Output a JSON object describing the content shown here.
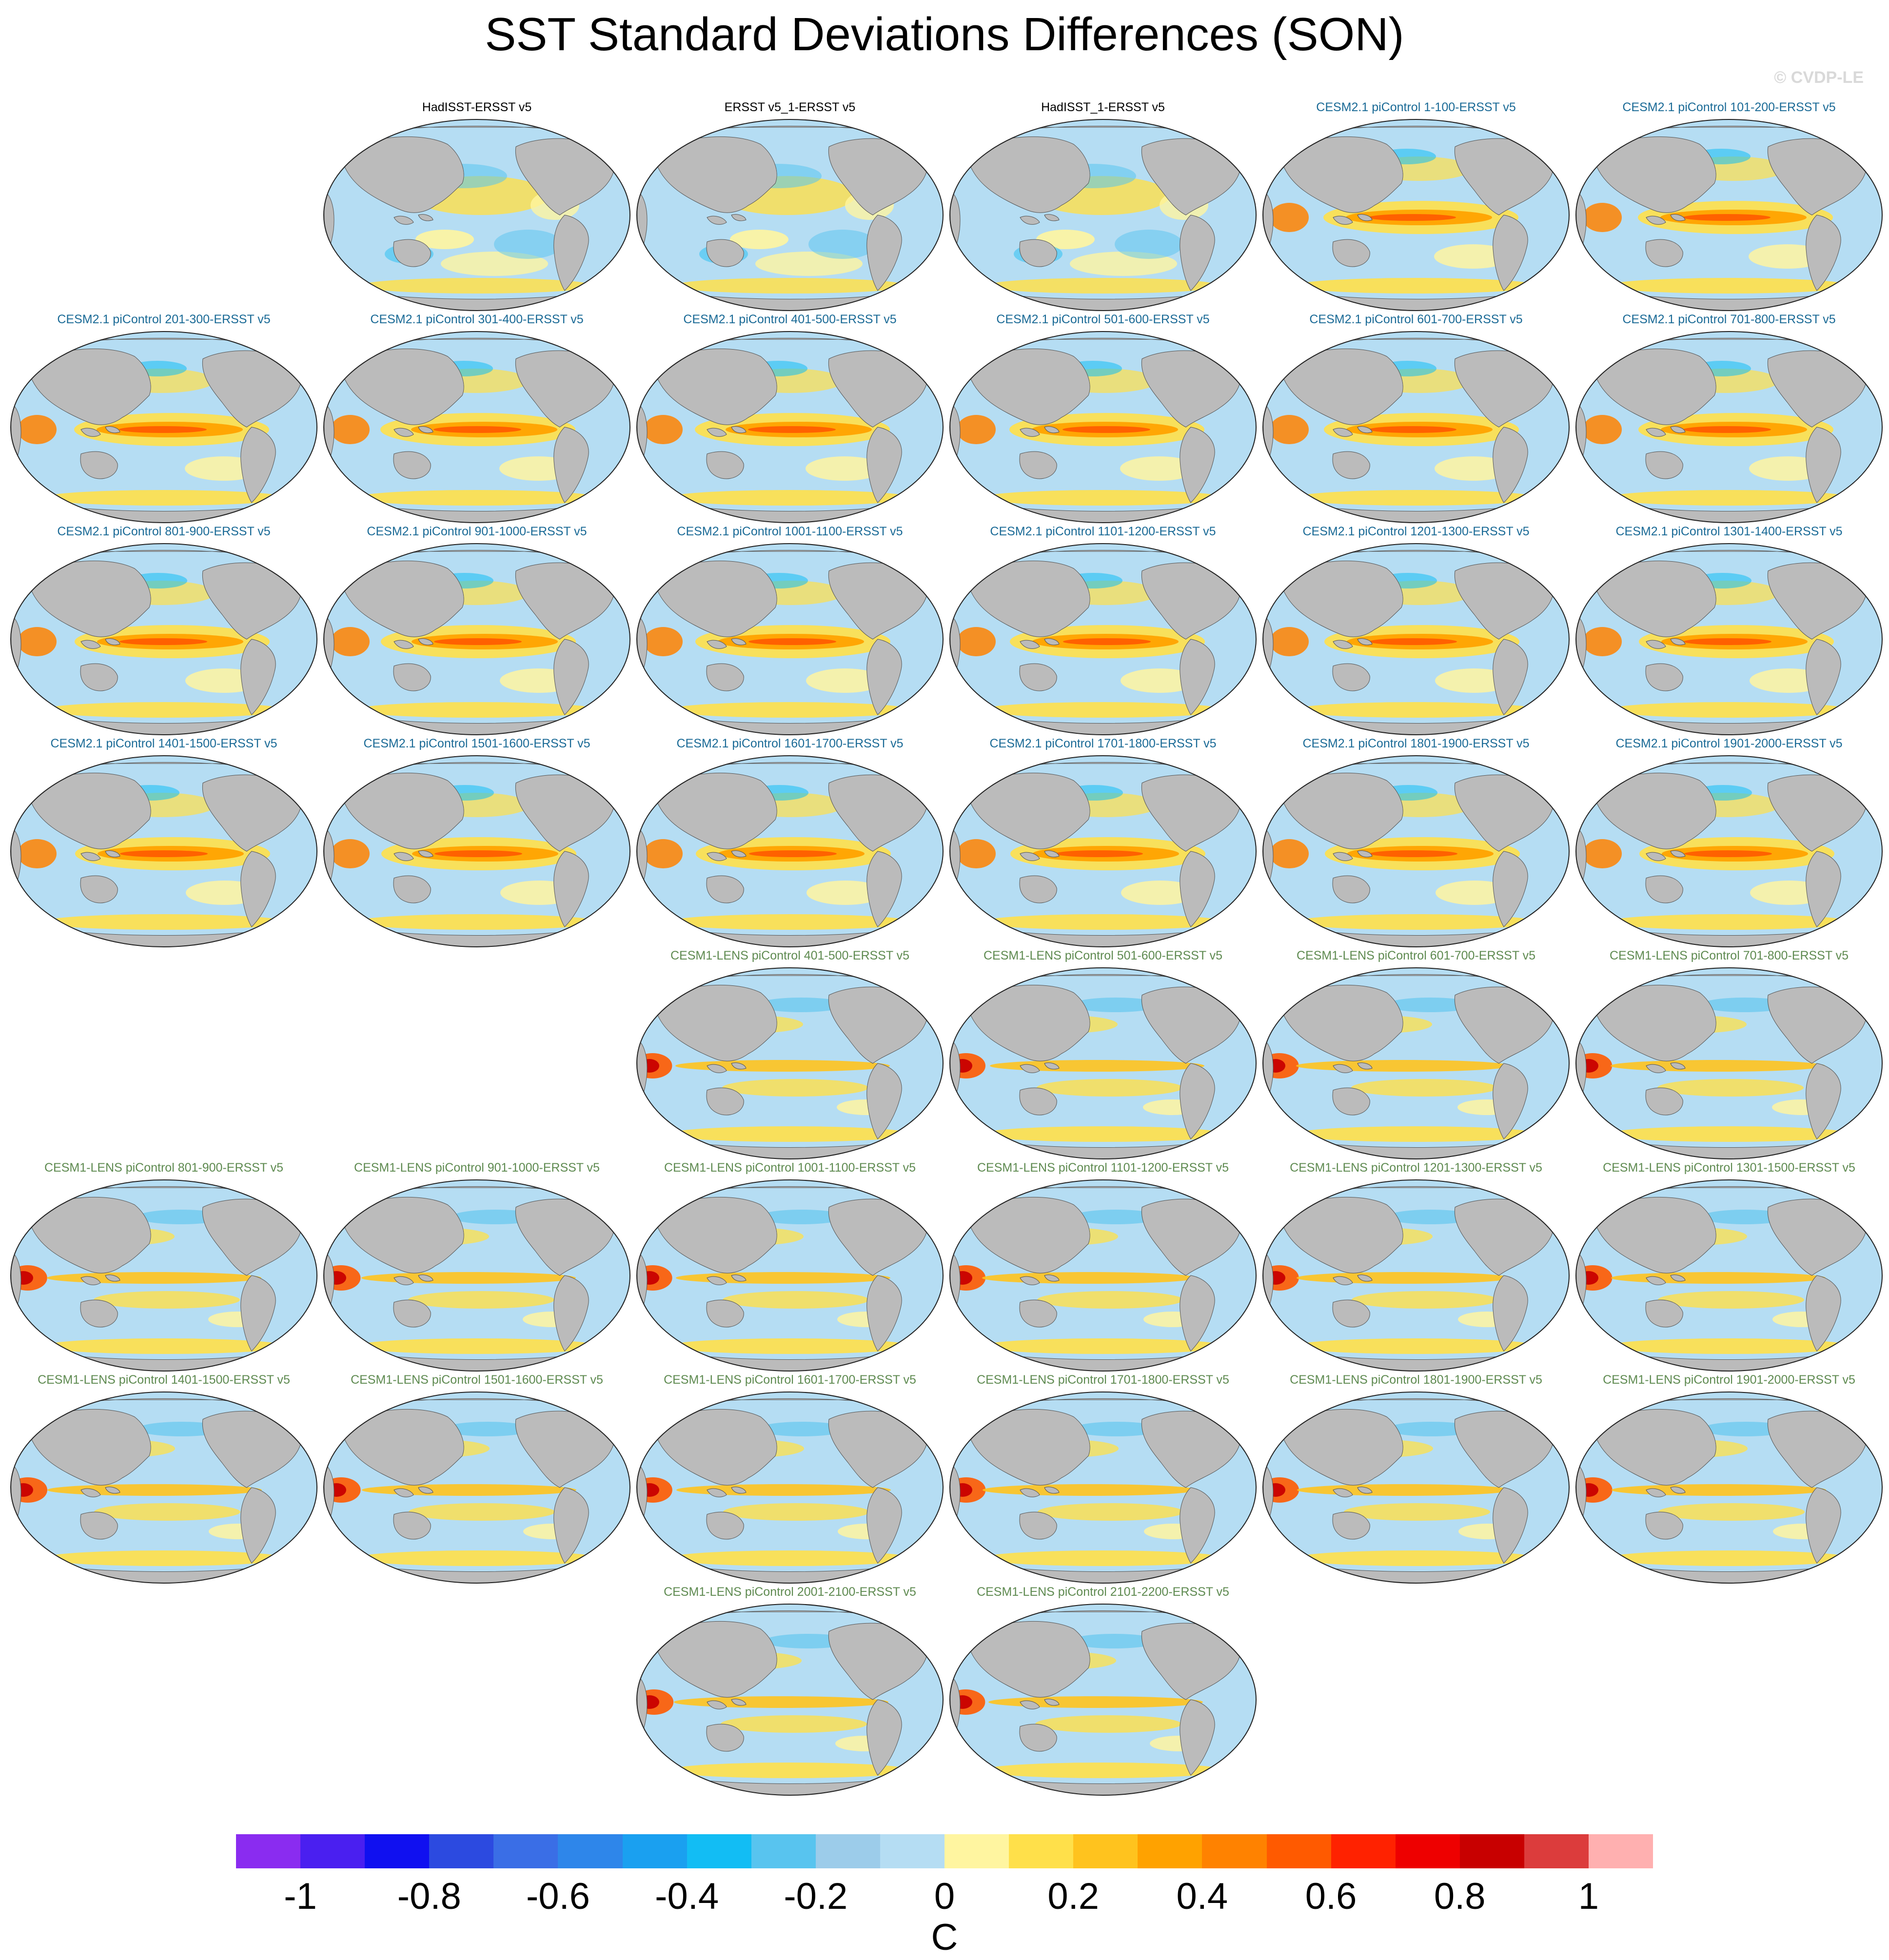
{
  "title": "SST Standard Deviations Differences (SON)",
  "watermark": "© CVDP-LE",
  "title_colors": {
    "obs": "#000000",
    "cesm2": "#1a6a96",
    "lens": "#5e8a50"
  },
  "map_colors": {
    "ocean_base": "#b5ddf3",
    "land": "#bbbbbb",
    "coast": "#555555"
  },
  "panels": [
    {
      "title": "HadISST-ERSST v5",
      "group": "obs",
      "row": 0,
      "col": 1
    },
    {
      "title": "ERSST v5_1-ERSST v5",
      "group": "obs",
      "row": 0,
      "col": 2
    },
    {
      "title": "HadISST_1-ERSST v5",
      "group": "obs",
      "row": 0,
      "col": 3
    },
    {
      "title": "CESM2.1 piControl 1-100-ERSST v5",
      "group": "cesm2",
      "row": 0,
      "col": 4
    },
    {
      "title": "CESM2.1 piControl 101-200-ERSST v5",
      "group": "cesm2",
      "row": 0,
      "col": 5
    },
    {
      "title": "CESM2.1 piControl 201-300-ERSST v5",
      "group": "cesm2",
      "row": 1,
      "col": 0
    },
    {
      "title": "CESM2.1 piControl 301-400-ERSST v5",
      "group": "cesm2",
      "row": 1,
      "col": 1
    },
    {
      "title": "CESM2.1 piControl 401-500-ERSST v5",
      "group": "cesm2",
      "row": 1,
      "col": 2
    },
    {
      "title": "CESM2.1 piControl 501-600-ERSST v5",
      "group": "cesm2",
      "row": 1,
      "col": 3
    },
    {
      "title": "CESM2.1 piControl 601-700-ERSST v5",
      "group": "cesm2",
      "row": 1,
      "col": 4
    },
    {
      "title": "CESM2.1 piControl 701-800-ERSST v5",
      "group": "cesm2",
      "row": 1,
      "col": 5
    },
    {
      "title": "CESM2.1 piControl 801-900-ERSST v5",
      "group": "cesm2",
      "row": 2,
      "col": 0
    },
    {
      "title": "CESM2.1 piControl 901-1000-ERSST v5",
      "group": "cesm2",
      "row": 2,
      "col": 1
    },
    {
      "title": "CESM2.1 piControl 1001-1100-ERSST v5",
      "group": "cesm2",
      "row": 2,
      "col": 2
    },
    {
      "title": "CESM2.1 piControl 1101-1200-ERSST v5",
      "group": "cesm2",
      "row": 2,
      "col": 3
    },
    {
      "title": "CESM2.1 piControl 1201-1300-ERSST v5",
      "group": "cesm2",
      "row": 2,
      "col": 4
    },
    {
      "title": "CESM2.1 piControl 1301-1400-ERSST v5",
      "group": "cesm2",
      "row": 2,
      "col": 5
    },
    {
      "title": "CESM2.1 piControl 1401-1500-ERSST v5",
      "group": "cesm2",
      "row": 3,
      "col": 0
    },
    {
      "title": "CESM2.1 piControl 1501-1600-ERSST v5",
      "group": "cesm2",
      "row": 3,
      "col": 1
    },
    {
      "title": "CESM2.1 piControl 1601-1700-ERSST v5",
      "group": "cesm2",
      "row": 3,
      "col": 2
    },
    {
      "title": "CESM2.1 piControl 1701-1800-ERSST v5",
      "group": "cesm2",
      "row": 3,
      "col": 3
    },
    {
      "title": "CESM2.1 piControl 1801-1900-ERSST v5",
      "group": "cesm2",
      "row": 3,
      "col": 4
    },
    {
      "title": "CESM2.1 piControl 1901-2000-ERSST v5",
      "group": "cesm2",
      "row": 3,
      "col": 5
    },
    {
      "title": "CESM1-LENS piControl 401-500-ERSST v5",
      "group": "lens",
      "row": 4,
      "col": 2
    },
    {
      "title": "CESM1-LENS piControl 501-600-ERSST v5",
      "group": "lens",
      "row": 4,
      "col": 3
    },
    {
      "title": "CESM1-LENS piControl 601-700-ERSST v5",
      "group": "lens",
      "row": 4,
      "col": 4
    },
    {
      "title": "CESM1-LENS piControl 701-800-ERSST v5",
      "group": "lens",
      "row": 4,
      "col": 5
    },
    {
      "title": "CESM1-LENS piControl 801-900-ERSST v5",
      "group": "lens",
      "row": 5,
      "col": 0
    },
    {
      "title": "CESM1-LENS piControl 901-1000-ERSST v5",
      "group": "lens",
      "row": 5,
      "col": 1
    },
    {
      "title": "CESM1-LENS piControl 1001-1100-ERSST v5",
      "group": "lens",
      "row": 5,
      "col": 2
    },
    {
      "title": "CESM1-LENS piControl 1101-1200-ERSST v5",
      "group": "lens",
      "row": 5,
      "col": 3
    },
    {
      "title": "CESM1-LENS piControl 1201-1300-ERSST v5",
      "group": "lens",
      "row": 5,
      "col": 4
    },
    {
      "title": "CESM1-LENS piControl 1301-1500-ERSST v5",
      "group": "lens",
      "row": 5,
      "col": 5
    },
    {
      "title": "CESM1-LENS piControl 1401-1500-ERSST v5",
      "group": "lens",
      "row": 6,
      "col": 0
    },
    {
      "title": "CESM1-LENS piControl 1501-1600-ERSST v5",
      "group": "lens",
      "row": 6,
      "col": 1
    },
    {
      "title": "CESM1-LENS piControl 1601-1700-ERSST v5",
      "group": "lens",
      "row": 6,
      "col": 2
    },
    {
      "title": "CESM1-LENS piControl 1701-1800-ERSST v5",
      "group": "lens",
      "row": 6,
      "col": 3
    },
    {
      "title": "CESM1-LENS piControl 1801-1900-ERSST v5",
      "group": "lens",
      "row": 6,
      "col": 4
    },
    {
      "title": "CESM1-LENS piControl 1901-2000-ERSST v5",
      "group": "lens",
      "row": 6,
      "col": 5
    },
    {
      "title": "CESM1-LENS piControl 2001-2100-ERSST v5",
      "group": "lens",
      "row": 7,
      "col": 2
    },
    {
      "title": "CESM1-LENS piControl 2101-2200-ERSST v5",
      "group": "lens",
      "row": 7,
      "col": 3
    }
  ],
  "colorbar": {
    "units": "C",
    "colors": [
      "#8a2cf0",
      "#4a1ff0",
      "#1010f0",
      "#2c4ae0",
      "#3a6ee6",
      "#2e86ea",
      "#1aa0f0",
      "#12bdf4",
      "#58c4ef",
      "#9cccea",
      "#b5ddf3",
      "#fff5a0",
      "#ffe04a",
      "#ffc31e",
      "#ffa200",
      "#ff8200",
      "#ff5a00",
      "#ff2200",
      "#ee0000",
      "#c80000",
      "#dc3c3c",
      "#ffb0b0"
    ],
    "ticks": [
      "-1",
      "-0.8",
      "-0.6",
      "-0.4",
      "-0.2",
      "0",
      "0.2",
      "0.4",
      "0.6",
      "0.8",
      "1"
    ]
  }
}
